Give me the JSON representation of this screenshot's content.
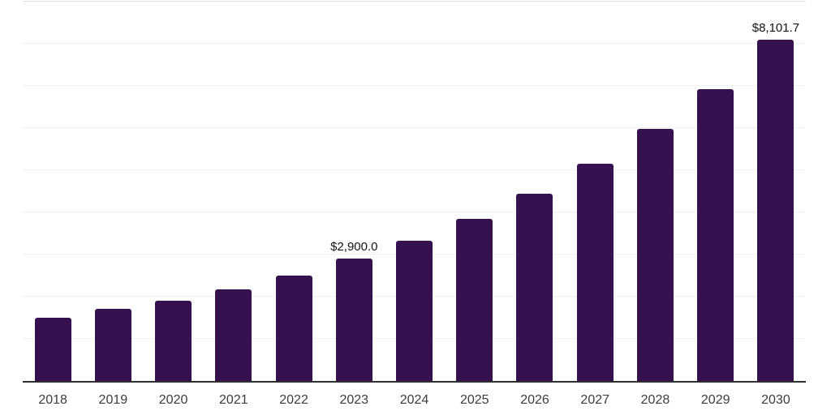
{
  "chart": {
    "background_color": "#ffffff",
    "bar_color": "#35114f",
    "axis_color": "#2e2e2e",
    "grid_color": "#f2f2f2",
    "top_grid_color": "#e3e3e3",
    "tick_color": "#3c3c3c",
    "annotation_color": "#121212"
  },
  "chart_data": {
    "type": "bar",
    "title": "",
    "xlabel": "",
    "ylabel": "",
    "categories": [
      "2018",
      "2019",
      "2020",
      "2021",
      "2022",
      "2023",
      "2024",
      "2025",
      "2026",
      "2027",
      "2028",
      "2029",
      "2030"
    ],
    "values": [
      1500,
      1710,
      1900,
      2170,
      2500,
      2900,
      3330,
      3850,
      4450,
      5150,
      5980,
      6930,
      8101.7
    ],
    "annotations": [
      {
        "category": "2023",
        "value": 2900.0,
        "text": "$2,900.0"
      },
      {
        "category": "2030",
        "value": 8101.7,
        "text": "$8,101.7"
      }
    ],
    "ylim": [
      0,
      9000
    ],
    "gridline_interval": 1000,
    "grid": true,
    "y_tick_labels_visible": false,
    "legend": false
  }
}
